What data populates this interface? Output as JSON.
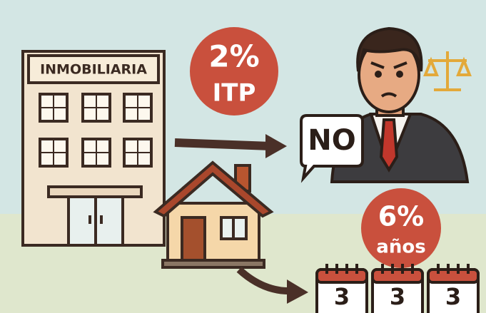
{
  "sign": {
    "label": "INMOBILIARIA"
  },
  "tax_badge": {
    "rate": "2%",
    "label": "ITP"
  },
  "speech_bubble": {
    "text": "NO"
  },
  "years_badge": {
    "rate": "6%",
    "label": "años"
  },
  "calendars": [
    "3",
    "3",
    "3"
  ]
}
